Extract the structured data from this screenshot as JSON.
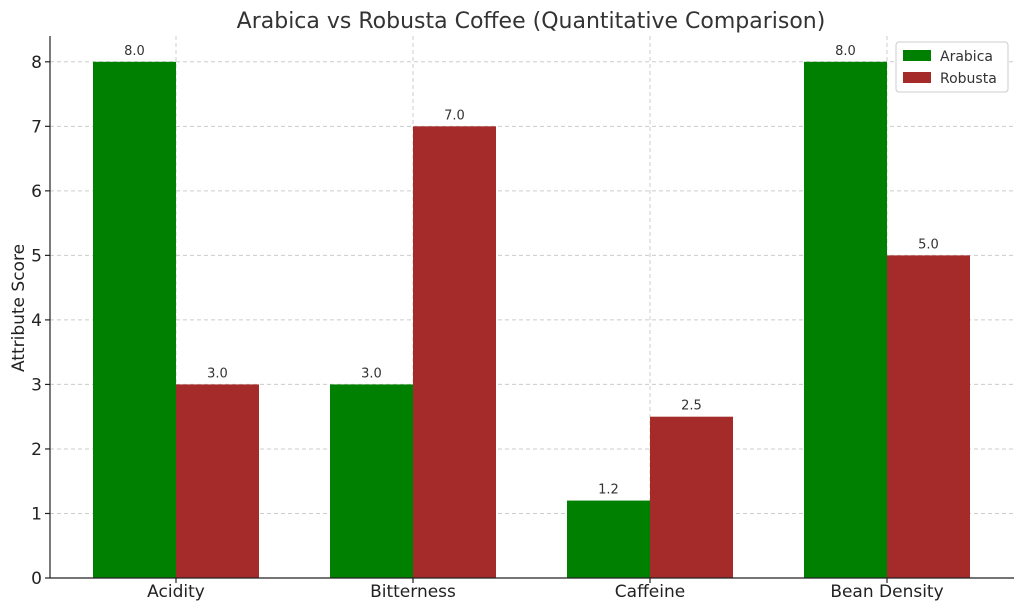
{
  "chart_data": {
    "type": "bar",
    "title": "Arabica vs Robusta Coffee (Quantitative Comparison)",
    "xlabel": "",
    "ylabel": "Attribute Score",
    "categories": [
      "Acidity",
      "Bitterness",
      "Caffeine",
      "Bean Density"
    ],
    "series": [
      {
        "name": "Arabica",
        "color": "#008000",
        "values": [
          8.0,
          3.0,
          1.2,
          8.0
        ]
      },
      {
        "name": "Robusta",
        "color": "#a52a2a",
        "values": [
          3.0,
          7.0,
          2.5,
          5.0
        ]
      }
    ],
    "data_labels": {
      "Arabica": [
        "8.0",
        "3.0",
        "1.2",
        "8.0"
      ],
      "Robusta": [
        "3.0",
        "7.0",
        "2.5",
        "5.0"
      ]
    },
    "ylim": [
      0,
      8.4
    ],
    "yticks": [
      "0",
      "1",
      "2",
      "3",
      "4",
      "5",
      "6",
      "7",
      "8"
    ],
    "grid": true,
    "legend_position": "top-right"
  }
}
